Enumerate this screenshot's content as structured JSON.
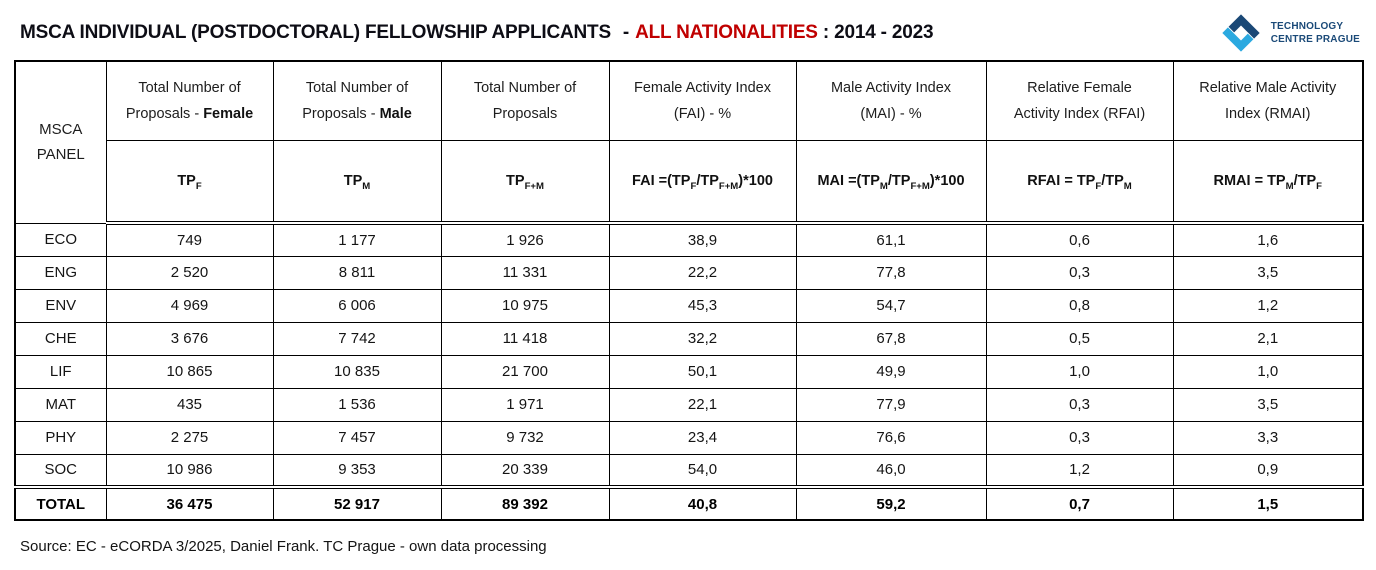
{
  "header": {
    "title_main": "MSCA INDIVIDUAL (POSTDOCTORAL) FELLOWSHIP APPLICANTS",
    "title_dash": "-",
    "title_highlight": "ALL NATIONALITIES",
    "title_period": ": 2014 - 2023",
    "logo": {
      "line1": "TECHNOLOGY",
      "line2": "CENTRE PRAGUE",
      "light_blue": "#2BA9E0",
      "dark_blue": "#1A4876",
      "text_blue": "#1B4A78"
    }
  },
  "colors": {
    "highlight_red": "#C00000",
    "border_black": "#000000",
    "background": "#FFFFFF"
  },
  "table": {
    "panel_header": "MSCA PANEL",
    "columns": [
      {
        "title": [
          {
            "t": "Total Number of"
          },
          {
            "br": true
          },
          {
            "t": "Proposals - "
          },
          {
            "t": "Female",
            "b": true
          }
        ],
        "formula": [
          {
            "t": "TP"
          },
          {
            "t": "F",
            "sub": true
          }
        ]
      },
      {
        "title": [
          {
            "t": "Total Number of"
          },
          {
            "br": true
          },
          {
            "t": "Proposals - "
          },
          {
            "t": "Male",
            "b": true
          }
        ],
        "formula": [
          {
            "t": "TP"
          },
          {
            "t": "M",
            "sub": true
          }
        ]
      },
      {
        "title": [
          {
            "t": "Total Number of"
          },
          {
            "br": true
          },
          {
            "t": "Proposals"
          }
        ],
        "formula": [
          {
            "t": "TP"
          },
          {
            "t": "F+M",
            "sub": true
          }
        ]
      },
      {
        "title": [
          {
            "t": "Female Activity Index"
          },
          {
            "br": true
          },
          {
            "t": "(FAI) - %"
          }
        ],
        "formula": [
          {
            "t": "FAI =(TP"
          },
          {
            "t": "F",
            "sub": true
          },
          {
            "t": "/TP"
          },
          {
            "t": "F+M",
            "sub": true
          },
          {
            "t": ")*100"
          }
        ]
      },
      {
        "title": [
          {
            "t": "Male Activity Index"
          },
          {
            "br": true
          },
          {
            "t": "(MAI) - %"
          }
        ],
        "formula": [
          {
            "t": "MAI =(TP"
          },
          {
            "t": "M",
            "sub": true
          },
          {
            "t": "/TP"
          },
          {
            "t": "F+M",
            "sub": true
          },
          {
            "t": ")*100"
          }
        ]
      },
      {
        "title": [
          {
            "t": "Relative Female"
          },
          {
            "br": true
          },
          {
            "t": "Activity Index (RFAI)"
          }
        ],
        "formula": [
          {
            "t": "RFAI = TP"
          },
          {
            "t": "F",
            "sub": true
          },
          {
            "t": "/TP"
          },
          {
            "t": "M",
            "sub": true
          }
        ]
      },
      {
        "title": [
          {
            "t": "Relative Male Activity"
          },
          {
            "br": true
          },
          {
            "t": "Index (RMAI)"
          }
        ],
        "formula": [
          {
            "t": "RMAI = TP"
          },
          {
            "t": "M",
            "sub": true
          },
          {
            "t": "/TP"
          },
          {
            "t": "F",
            "sub": true
          }
        ]
      }
    ],
    "rows": [
      {
        "panel": "ECO",
        "values": [
          "749",
          "1 177",
          "1 926",
          "38,9",
          "61,1",
          "0,6",
          "1,6"
        ]
      },
      {
        "panel": "ENG",
        "values": [
          "2 520",
          "8 811",
          "11 331",
          "22,2",
          "77,8",
          "0,3",
          "3,5"
        ]
      },
      {
        "panel": "ENV",
        "values": [
          "4 969",
          "6 006",
          "10 975",
          "45,3",
          "54,7",
          "0,8",
          "1,2"
        ]
      },
      {
        "panel": "CHE",
        "values": [
          "3 676",
          "7 742",
          "11 418",
          "32,2",
          "67,8",
          "0,5",
          "2,1"
        ]
      },
      {
        "panel": "LIF",
        "values": [
          "10 865",
          "10 835",
          "21 700",
          "50,1",
          "49,9",
          "1,0",
          "1,0"
        ]
      },
      {
        "panel": "MAT",
        "values": [
          "435",
          "1 536",
          "1 971",
          "22,1",
          "77,9",
          "0,3",
          "3,5"
        ]
      },
      {
        "panel": "PHY",
        "values": [
          "2 275",
          "7 457",
          "9 732",
          "23,4",
          "76,6",
          "0,3",
          "3,3"
        ]
      },
      {
        "panel": "SOC",
        "values": [
          "10 986",
          "9 353",
          "20 339",
          "54,0",
          "46,0",
          "1,2",
          "0,9"
        ]
      }
    ],
    "total_row": {
      "panel": "TOTAL",
      "values": [
        "36 475",
        "52 917",
        "89 392",
        "40,8",
        "59,2",
        "0,7",
        "1,5"
      ]
    }
  },
  "footer": {
    "source": "Source: EC - eCORDA 3/2025, Daniel Frank. TC Prague - own data processing"
  },
  "chart_data": {
    "type": "table",
    "title": "MSCA INDIVIDUAL (POSTDOCTORAL) FELLOWSHIP APPLICANTS - ALL NATIONALITIES : 2014 - 2023",
    "columns": [
      "MSCA PANEL",
      "Total Number of Proposals - Female (TPF)",
      "Total Number of Proposals - Male (TPM)",
      "Total Number of Proposals (TPF+M)",
      "Female Activity Index (FAI) % = (TPF/TPF+M)*100",
      "Male Activity Index (MAI) % = (TPM/TPF+M)*100",
      "Relative Female Activity Index (RFAI) = TPF/TPM",
      "Relative Male Activity Index (RMAI) = TPM/TPF"
    ],
    "rows": [
      [
        "ECO",
        749,
        1177,
        1926,
        38.9,
        61.1,
        0.6,
        1.6
      ],
      [
        "ENG",
        2520,
        8811,
        11331,
        22.2,
        77.8,
        0.3,
        3.5
      ],
      [
        "ENV",
        4969,
        6006,
        10975,
        45.3,
        54.7,
        0.8,
        1.2
      ],
      [
        "CHE",
        3676,
        7742,
        11418,
        32.2,
        67.8,
        0.5,
        2.1
      ],
      [
        "LIF",
        10865,
        10835,
        21700,
        50.1,
        49.9,
        1.0,
        1.0
      ],
      [
        "MAT",
        435,
        1536,
        1971,
        22.1,
        77.9,
        0.3,
        3.5
      ],
      [
        "PHY",
        2275,
        7457,
        9732,
        23.4,
        76.6,
        0.3,
        3.3
      ],
      [
        "SOC",
        10986,
        9353,
        20339,
        54.0,
        46.0,
        1.2,
        0.9
      ],
      [
        "TOTAL",
        36475,
        52917,
        89392,
        40.8,
        59.2,
        0.7,
        1.5
      ]
    ]
  }
}
